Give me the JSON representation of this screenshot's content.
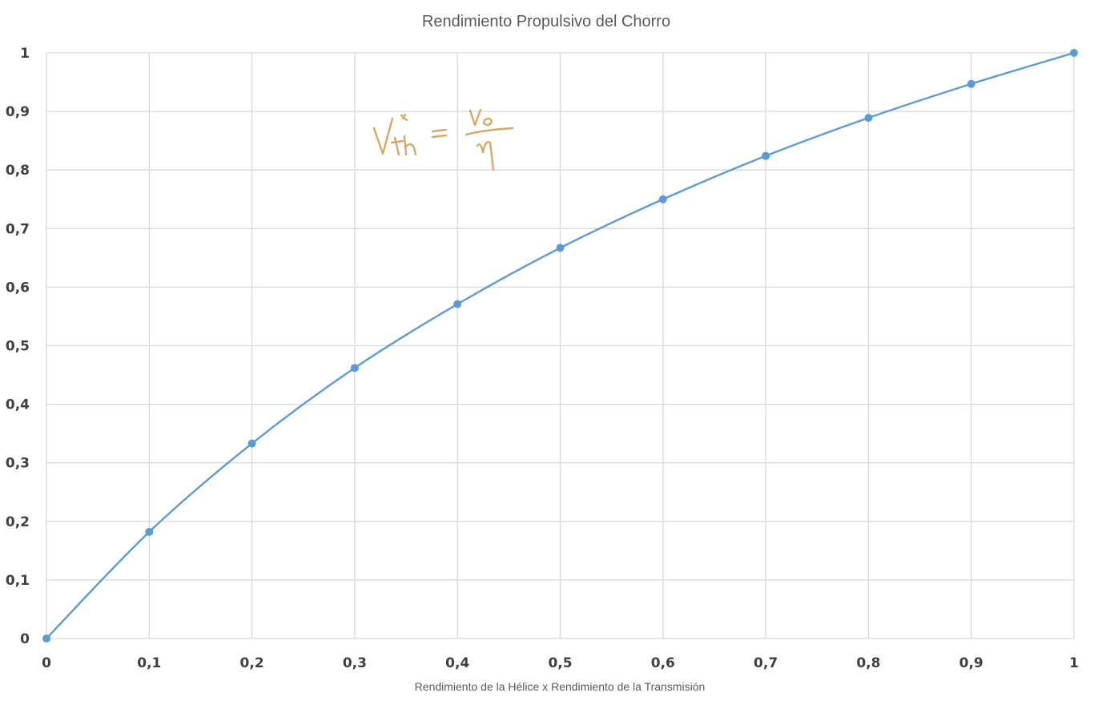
{
  "chart_data": {
    "type": "line",
    "title": "Rendimiento Propulsivo del Chorro",
    "xlabel": "Rendimiento de la Hélice x Rendimiento de la Transmisión",
    "ylabel": "",
    "x": [
      0,
      0.1,
      0.2,
      0.3,
      0.4,
      0.5,
      0.6,
      0.7,
      0.8,
      0.9,
      1
    ],
    "series": [
      {
        "values": [
          0,
          0.182,
          0.333,
          0.462,
          0.571,
          0.667,
          0.75,
          0.824,
          0.889,
          0.947,
          1
        ]
      }
    ],
    "xlim": [
      0,
      1
    ],
    "ylim": [
      0,
      1
    ],
    "x_tick_labels": [
      "0",
      "0,1",
      "0,2",
      "0,3",
      "0,4",
      "0,5",
      "0,6",
      "0,7",
      "0,8",
      "0,9",
      "1"
    ],
    "y_tick_labels": [
      "0",
      "0,1",
      "0,2",
      "0,3",
      "0,4",
      "0,5",
      "0,6",
      "0,7",
      "0,8",
      "0,9",
      "1"
    ],
    "grid": true,
    "legend": "none",
    "colors": {
      "series": "#5b9bd5",
      "grid": "#d9d9d9",
      "annotation": "#d4a866"
    },
    "annotation": {
      "type": "handwritten-formula",
      "content": "V*th = V0 / η"
    }
  }
}
